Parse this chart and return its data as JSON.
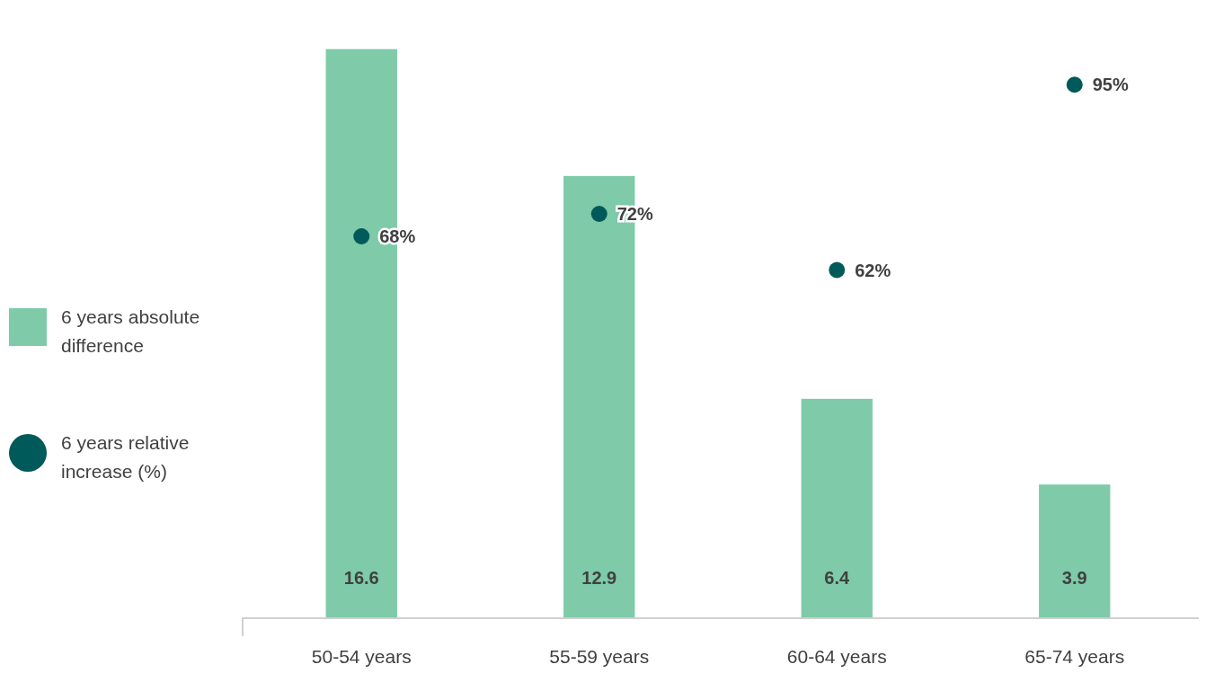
{
  "chart_data": {
    "type": "bar",
    "categories": [
      "50-54 years",
      "55-59 years",
      "60-64 years",
      "65-74 years"
    ],
    "series": [
      {
        "name": "6 years absolute difference",
        "type": "bar",
        "color": "#7ecaa9",
        "values": [
          16.6,
          12.9,
          6.4,
          3.9
        ]
      },
      {
        "name": "6 years relative increase (%)",
        "type": "scatter",
        "axis": "y2",
        "color": "#005a5a",
        "values": [
          68,
          72,
          62,
          95
        ],
        "value_labels": [
          "68%",
          "72%",
          "62%",
          "95%"
        ]
      }
    ],
    "data_labels": true,
    "legend": "left",
    "marker": "circle",
    "tick_labels": "x",
    "grid": false
  }
}
